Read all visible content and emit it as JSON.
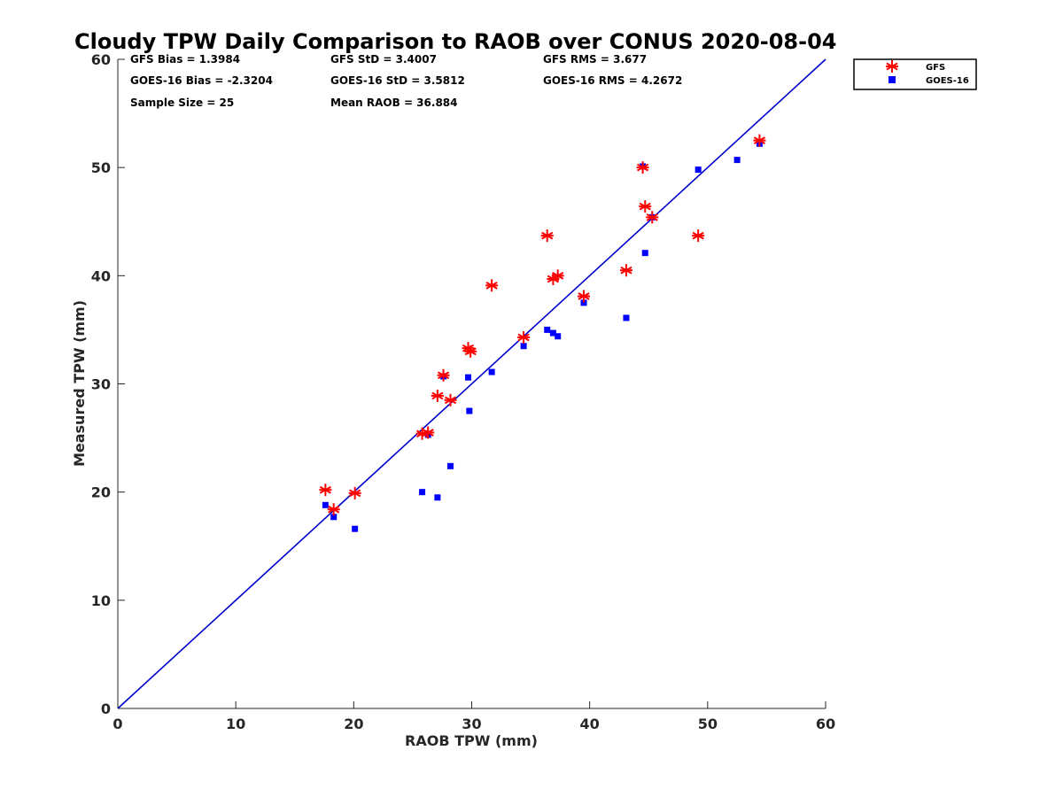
{
  "chart_data": {
    "type": "scatter",
    "title": "Cloudy TPW Daily Comparison to RAOB over CONUS 2020-08-04",
    "xlabel": "RAOB TPW (mm)",
    "ylabel": "Measured TPW (mm)",
    "xlim": [
      0,
      60
    ],
    "ylim": [
      0,
      60
    ],
    "xticks": [
      "0",
      "10",
      "20",
      "30",
      "40",
      "50",
      "60"
    ],
    "yticks": [
      "0",
      "10",
      "20",
      "30",
      "40",
      "50",
      "60"
    ],
    "grid": false,
    "legend_position": "top-right, outside plot",
    "reference_line": {
      "type": "one-to-one",
      "color": "#0000cc"
    },
    "stats": {
      "gfs_bias": "GFS Bias = 1.3984",
      "goes_bias": "GOES-16 Bias = -2.3204",
      "sample_size": "Sample Size = 25",
      "gfs_std": "GFS StD = 3.4007",
      "goes_std": "GOES-16 StD = 3.5812",
      "mean_raob": "Mean RAOB = 36.884",
      "gfs_rms": "GFS RMS = 3.677",
      "goes_rms": "GOES-16 RMS = 4.2672"
    },
    "series": [
      {
        "name": "GFS",
        "marker": "asterisk",
        "color": "#ff0000",
        "x": [
          17.6,
          18.3,
          20.1,
          25.8,
          26.3,
          27.1,
          27.6,
          28.2,
          29.7,
          29.9,
          31.7,
          34.4,
          36.4,
          36.9,
          37.3,
          39.5,
          43.1,
          44.5,
          44.7,
          45.3,
          49.2,
          54.4
        ],
        "y": [
          20.2,
          18.4,
          19.9,
          25.4,
          25.5,
          28.9,
          30.8,
          28.5,
          33.3,
          33.0,
          39.1,
          34.3,
          43.7,
          39.7,
          40.0,
          38.1,
          40.5,
          50.0,
          46.4,
          45.4,
          43.7,
          52.5
        ]
      },
      {
        "name": "GOES-16",
        "marker": "square",
        "color": "#0000ff",
        "x": [
          17.6,
          18.3,
          20.1,
          25.8,
          26.3,
          27.1,
          27.6,
          28.2,
          29.7,
          29.8,
          31.7,
          34.4,
          36.4,
          36.9,
          37.3,
          39.5,
          43.1,
          44.5,
          44.7,
          45.3,
          49.2,
          52.5,
          54.4
        ],
        "y": [
          18.8,
          17.7,
          16.6,
          20.0,
          25.3,
          19.5,
          30.7,
          22.4,
          30.6,
          27.5,
          31.1,
          33.5,
          35.0,
          34.7,
          34.4,
          37.5,
          36.1,
          50.1,
          42.1,
          45.4,
          49.8,
          50.7,
          52.2
        ]
      }
    ]
  }
}
